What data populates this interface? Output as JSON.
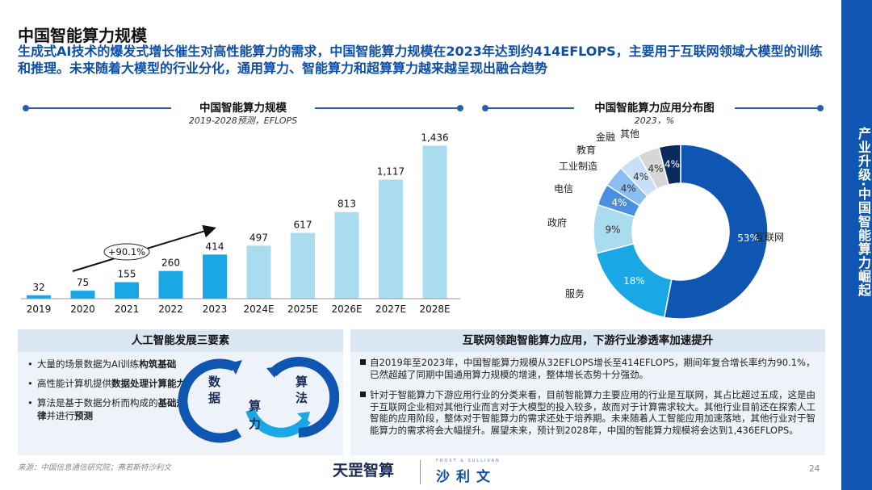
{
  "title": "中国智能算力规模",
  "subtitle": "生成式AI技术的爆发式增长催生对高性能算力的需求，中国智能算力规模在2023年达到约414EFLOPS，主要用于互联网领域大模型的训练和推理。未来随着大模型的行业分化，通用算力、智能算力和超算算力越来越呈现出融合趋势",
  "side_label": "产业升级·中国智能算力崛起",
  "bar_section": {
    "title": "中国智能算力规模",
    "subtitle": "2019-2028预测，EFLOPS",
    "cagr_label": "+90.1%"
  },
  "pie_section": {
    "title": "中国智能算力应用分布图",
    "subtitle": "2023，%"
  },
  "colors": {
    "bar_actual": "#1aa7e6",
    "bar_forecast": "#a9dcee",
    "accent": "#0f56b3",
    "line": "#2a5fb0"
  },
  "chart_data": [
    {
      "type": "bar",
      "title": "中国智能算力规模",
      "subtitle": "2019-2028预测，EFLOPS",
      "categories": [
        "2019",
        "2020",
        "2021",
        "2022",
        "2023",
        "2024E",
        "2025E",
        "2026E",
        "2027E",
        "2028E"
      ],
      "values": [
        32,
        75,
        155,
        260,
        414,
        497,
        617,
        813,
        1117,
        1436
      ],
      "labels": [
        "32",
        "75",
        "155",
        "260",
        "414",
        "497",
        "617",
        "813",
        "1,117",
        "1,436"
      ],
      "forecast_from_index": 5,
      "ylim": [
        0,
        1500
      ],
      "annotation": "+90.1%"
    },
    {
      "type": "pie",
      "title": "中国智能算力应用分布图",
      "subtitle": "2023，%",
      "slices": [
        {
          "name": "互联网",
          "value": 53,
          "label": "53%",
          "color": "#0f56b3"
        },
        {
          "name": "服务",
          "value": 18,
          "label": "18%",
          "color": "#1aa7e6"
        },
        {
          "name": "政府",
          "value": 9,
          "label": "9%",
          "color": "#a9dcee"
        },
        {
          "name": "电信",
          "value": 4,
          "label": "4%",
          "color": "#4a8fe0"
        },
        {
          "name": "工业制造",
          "value": 4,
          "label": "4%",
          "color": "#8cbdf0"
        },
        {
          "name": "教育",
          "value": 4,
          "label": "4%",
          "color": "#c9dff6"
        },
        {
          "name": "金融",
          "value": 4,
          "label": "4%",
          "color": "#d6d6d6"
        },
        {
          "name": "其他",
          "value": 4,
          "label": "4%",
          "color": "#0a2a5e"
        }
      ]
    }
  ],
  "left_panel": {
    "header": "人工智能发展三要素",
    "items": [
      {
        "pre": "大量的场景数据为AI训练",
        "bold": "构筑基础",
        "post": ""
      },
      {
        "pre": "高性能计算机提供",
        "bold": "数据处理计算能力",
        "post": ""
      },
      {
        "pre": "算法是基于数据分析而构成的",
        "bold": "基础规律",
        "post": "并进行",
        "bold2": "预测"
      }
    ],
    "cycle": {
      "a": "数据",
      "b": "算力",
      "c": "算法"
    }
  },
  "right_panel": {
    "header": "互联网领跑智能算力应用，下游行业渗透率加速提升",
    "p1": "自2019年至2023年，中国智能算力规模从32EFLOPS增长至414EFLOPS，期间年复合增长率约为90.1%，已然超越了同期中国通用算力规模的增速，整体增长态势十分强劲。",
    "p2": "针对于智能算力下游应用行业的分类来看，目前智能算力主要应用的行业是互联网，其占比超过五成，这是由于互联网企业相对其他行业而言对于大模型的投入较多，故而对于计算需求较大。其他行业目前还在探索人工智能的应用阶段，整体对于智能算力的需求还处于培养期。未来随着人工智能应用加速落地，其他行业对于智能算力的需求将会大幅提升。展望未来，预计到2028年，中国的智能算力规模将会达到1,436EFLOPS。"
  },
  "footer": {
    "source": "来源：中国信息通信研究院；弗若斯特沙利文",
    "page": "24",
    "logo1": "天罡智算",
    "logo2": "沙利文",
    "logo2_top": "FROST & SULLIVAN"
  }
}
